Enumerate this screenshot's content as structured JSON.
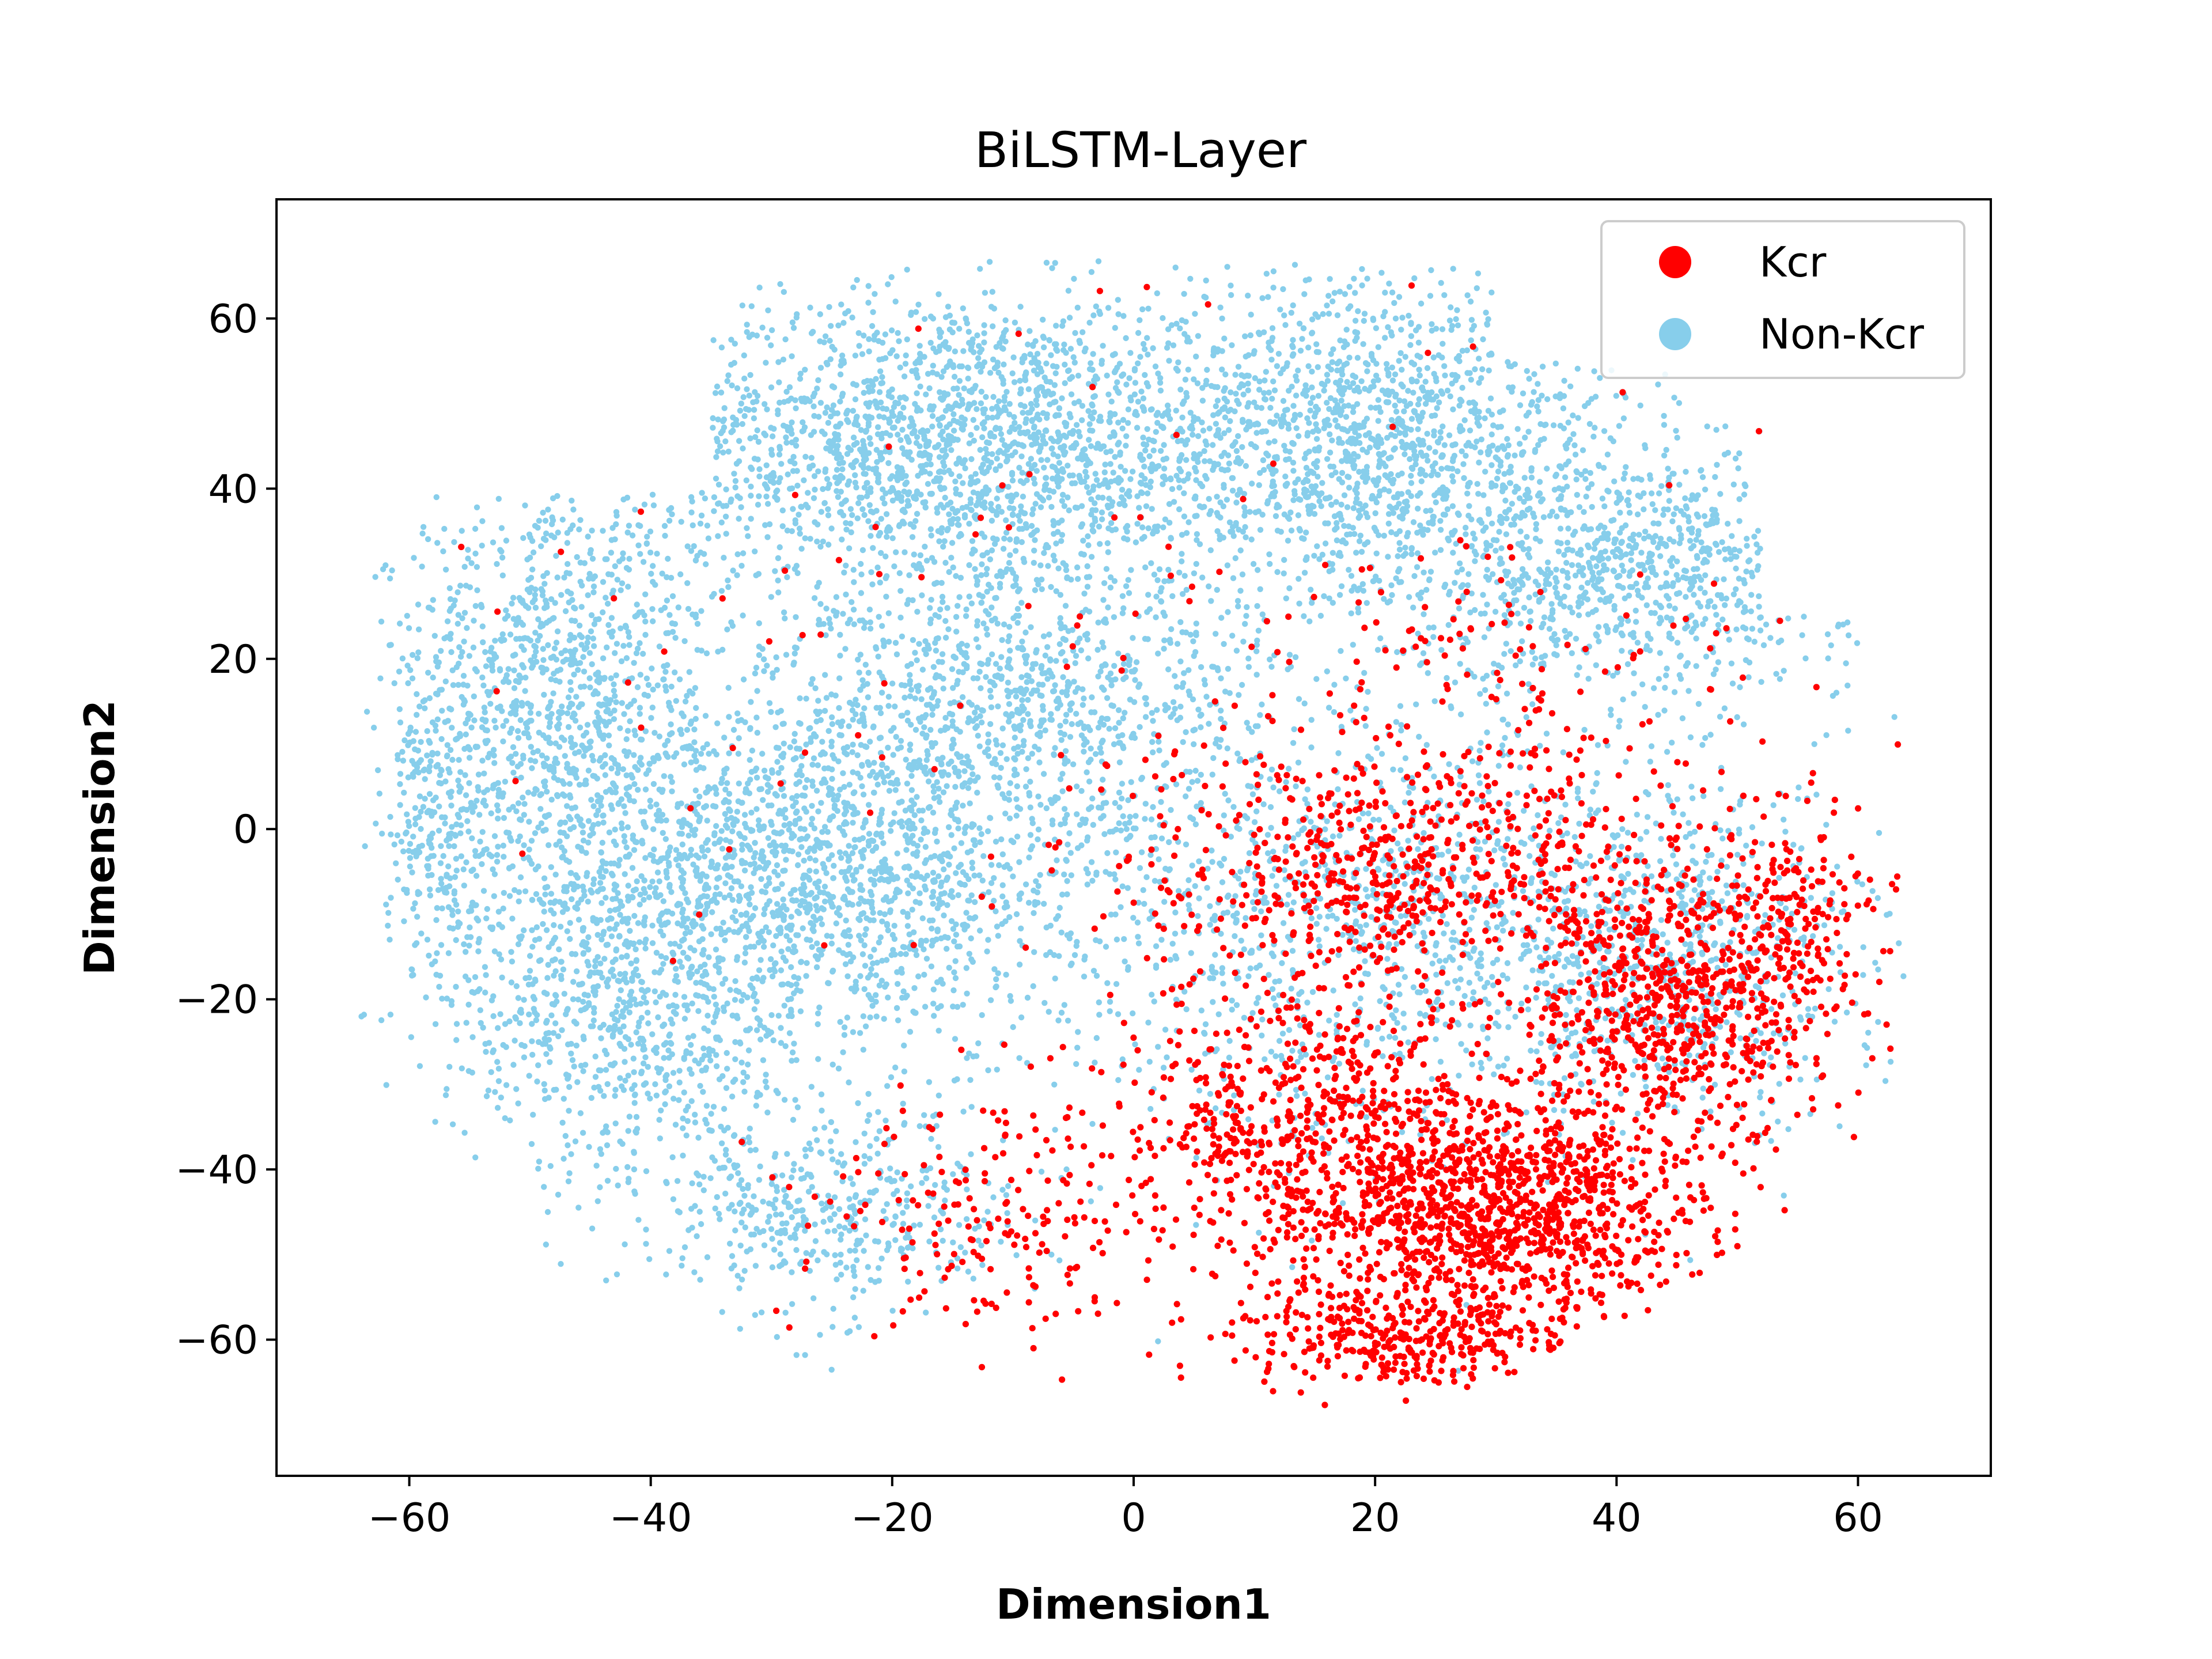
{
  "chart_data": {
    "type": "scatter",
    "title": "BiLSTM-Layer",
    "xlabel": "Dimension1",
    "ylabel": "Dimension2",
    "xlim": [
      -71,
      71
    ],
    "ylim": [
      -76,
      74
    ],
    "xticks": [
      -60,
      -40,
      -20,
      0,
      20,
      40,
      60
    ],
    "yticks": [
      -60,
      -40,
      -20,
      0,
      20,
      40,
      60
    ],
    "xtick_labels": [
      "−60",
      "−40",
      "−20",
      "0",
      "20",
      "40",
      "60"
    ],
    "ytick_labels": [
      "−60",
      "−40",
      "−20",
      "0",
      "20",
      "40",
      "60"
    ],
    "grid": false,
    "legend": {
      "placement": "top-right",
      "entries": [
        "Kcr",
        "Non-Kcr"
      ]
    },
    "series": [
      {
        "name": "Non-Kcr",
        "color": "#87CEEB",
        "approx_count": 11000,
        "clusters": [
          {
            "center": [
              -15,
              45
            ],
            "spread": [
              18,
              12
            ],
            "weight": 0.18
          },
          {
            "center": [
              20,
              45
            ],
            "spread": [
              14,
              13
            ],
            "weight": 0.13
          },
          {
            "center": [
              42,
              30
            ],
            "spread": [
              12,
              9
            ],
            "weight": 0.07
          },
          {
            "center": [
              -48,
              15
            ],
            "spread": [
              9,
              18
            ],
            "weight": 0.1
          },
          {
            "center": [
              -42,
              -20
            ],
            "spread": [
              10,
              15
            ],
            "weight": 0.08
          },
          {
            "center": [
              -25,
              -5
            ],
            "spread": [
              13,
              13
            ],
            "weight": 0.13
          },
          {
            "center": [
              -10,
              15
            ],
            "spread": [
              14,
              10
            ],
            "weight": 0.08
          },
          {
            "center": [
              -25,
              -45
            ],
            "spread": [
              10,
              8
            ],
            "weight": 0.04
          },
          {
            "center": [
              20,
              -10
            ],
            "spread": [
              22,
              18
            ],
            "weight": 0.12
          },
          {
            "center": [
              45,
              -15
            ],
            "spread": [
              10,
              12
            ],
            "weight": 0.05
          },
          {
            "center": [
              -58,
              0
            ],
            "spread": [
              3,
              14
            ],
            "weight": 0.02
          }
        ]
      },
      {
        "name": "Kcr",
        "color": "#FF0000",
        "approx_count": 4000,
        "clusters": [
          {
            "center": [
              30,
              -45
            ],
            "spread": [
              11,
              9
            ],
            "weight": 0.3
          },
          {
            "center": [
              15,
              -35
            ],
            "spread": [
              11,
              12
            ],
            "weight": 0.15
          },
          {
            "center": [
              45,
              -20
            ],
            "spread": [
              9,
              11
            ],
            "weight": 0.18
          },
          {
            "center": [
              20,
              -5
            ],
            "spread": [
              12,
              8
            ],
            "weight": 0.12
          },
          {
            "center": [
              22,
              -60
            ],
            "spread": [
              9,
              4
            ],
            "weight": 0.08
          },
          {
            "center": [
              -10,
              -45
            ],
            "spread": [
              12,
              10
            ],
            "weight": 0.05
          },
          {
            "center": [
              30,
              10
            ],
            "spread": [
              15,
              15
            ],
            "weight": 0.04
          },
          {
            "center": [
              10,
              20
            ],
            "spread": [
              40,
              30
            ],
            "weight": 0.04
          },
          {
            "center": [
              55,
              -10
            ],
            "spread": [
              5,
              8
            ],
            "weight": 0.04
          }
        ]
      }
    ]
  }
}
